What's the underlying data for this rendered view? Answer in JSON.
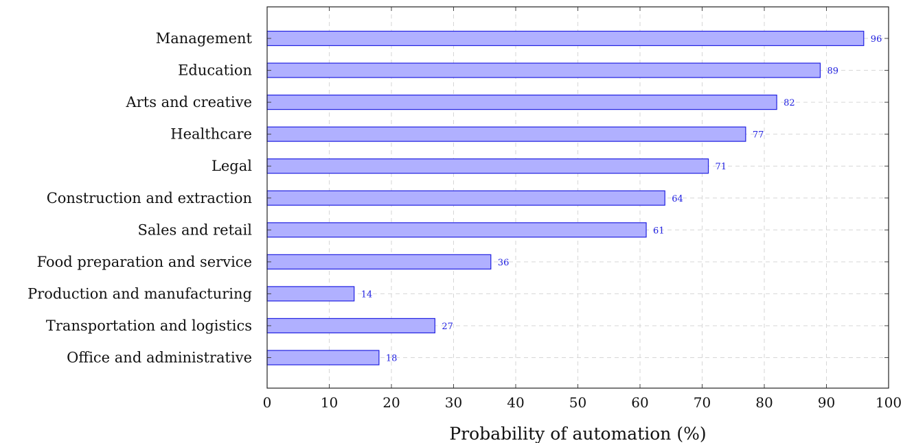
{
  "chart_data": {
    "type": "bar",
    "orientation": "horizontal",
    "categories": [
      "Management",
      "Education",
      "Arts and creative",
      "Healthcare",
      "Legal",
      "Construction and extraction",
      "Sales and retail",
      "Food preparation and service",
      "Production and manufacturing",
      "Transportation and logistics",
      "Office and administrative"
    ],
    "values": [
      96,
      89,
      82,
      77,
      71,
      64,
      61,
      36,
      14,
      27,
      18
    ],
    "xlabel": "Probability of automation (%)",
    "ylabel": "",
    "title": "",
    "xlim": [
      0,
      100
    ],
    "xticks": [
      0,
      10,
      20,
      30,
      40,
      50,
      60,
      70,
      80,
      90,
      100
    ],
    "grid": true,
    "data_labels": true,
    "colors": {
      "bar_fill": "#b0b0ff",
      "bar_stroke": "#2020e0",
      "data_label": "#2020e0"
    }
  }
}
